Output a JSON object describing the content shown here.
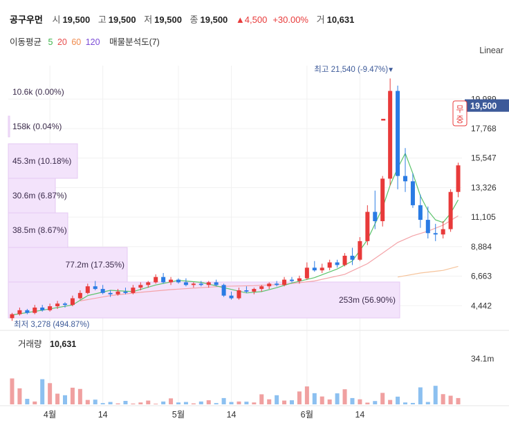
{
  "header": {
    "name": "공구우먼",
    "open_label": "시",
    "open": "19,500",
    "high_label": "고",
    "high": "19,500",
    "low_label": "저",
    "low": "19,500",
    "close_label": "종",
    "close": "19,500",
    "change": "▲4,500",
    "change_pct": "+30.00%",
    "volume_label": "거",
    "volume": "10,631"
  },
  "indicators": {
    "ma_label": "이동평균",
    "ma_periods": [
      "5",
      "20",
      "60",
      "120"
    ],
    "ma_colors": [
      "#3cb34a",
      "#e84b4b",
      "#f08a4b",
      "#7b4bd6"
    ],
    "profile_label": "매물분석도(7)"
  },
  "scale_label": "Linear",
  "colors": {
    "up": "#e83a3a",
    "down": "#2a7be4",
    "vp": "#f3e3fb",
    "vp_border": "#e6c8f3",
    "price_tag": "#3d5a99"
  },
  "chart_data": {
    "type": "candlestick",
    "y_ticks": [
      "19,989",
      "17,768",
      "15,547",
      "13,326",
      "11,105",
      "8,884",
      "6,663",
      "4,442"
    ],
    "ylim": [
      3000,
      22500
    ],
    "x_labels": [
      {
        "label": "4월",
        "index": 5
      },
      {
        "label": "14",
        "index": 12
      },
      {
        "label": "5월",
        "index": 22
      },
      {
        "label": "14",
        "index": 29
      },
      {
        "label": "6월",
        "index": 39
      },
      {
        "label": "14",
        "index": 46
      }
    ],
    "current_price": "19,500",
    "limit_up_label": "무중",
    "max_label": "최고 21,540 (-9.47%)",
    "min_label": "최저 3,278 (494.87%)",
    "volume_label": "거래량",
    "volume_value": "10,631",
    "volume_tick": "34.1m",
    "volume_profile": [
      {
        "label": "10.6k (0.00%)",
        "pct": 0.0
      },
      {
        "label": "158k (0.04%)",
        "pct": 0.04
      },
      {
        "label": "45.3m (10.18%)",
        "pct": 10.18
      },
      {
        "label": "30.6m (6.87%)",
        "pct": 6.87
      },
      {
        "label": "38.5m (8.67%)",
        "pct": 8.67
      },
      {
        "label": "77.2m (17.35%)",
        "pct": 17.35
      },
      {
        "label": "253m (56.90%)",
        "pct": 56.9
      }
    ],
    "candles": [
      [
        3500,
        3900,
        3300,
        3800
      ],
      [
        3800,
        4300,
        3700,
        4100
      ],
      [
        4100,
        4200,
        3800,
        3900
      ],
      [
        3900,
        4500,
        3800,
        4300
      ],
      [
        4300,
        4500,
        4000,
        4100
      ],
      [
        4100,
        4600,
        4000,
        4400
      ],
      [
        4400,
        4800,
        4200,
        4600
      ],
      [
        4600,
        4700,
        4300,
        4500
      ],
      [
        4500,
        5200,
        4400,
        5000
      ],
      [
        5000,
        5600,
        4900,
        5400
      ],
      [
        5400,
        6100,
        5300,
        5900
      ],
      [
        5900,
        6300,
        5600,
        5700
      ],
      [
        5700,
        6000,
        5300,
        5400
      ],
      [
        5400,
        5600,
        5100,
        5300
      ],
      [
        5300,
        5700,
        5200,
        5500
      ],
      [
        5500,
        5800,
        5300,
        5400
      ],
      [
        5400,
        6000,
        5300,
        5800
      ],
      [
        5800,
        6200,
        5600,
        6000
      ],
      [
        6000,
        6300,
        5800,
        6200
      ],
      [
        6200,
        6800,
        6100,
        6600
      ],
      [
        6600,
        6900,
        6100,
        6200
      ],
      [
        6200,
        6600,
        6000,
        6400
      ],
      [
        6400,
        6500,
        6100,
        6200
      ],
      [
        6200,
        6500,
        5900,
        6000
      ],
      [
        6000,
        6200,
        5800,
        6100
      ],
      [
        6100,
        6300,
        5900,
        6000
      ],
      [
        6000,
        6300,
        5800,
        6200
      ],
      [
        6200,
        6400,
        5900,
        6000
      ],
      [
        6000,
        6100,
        5100,
        5200
      ],
      [
        5200,
        5500,
        4900,
        5000
      ],
      [
        5000,
        5800,
        4900,
        5600
      ],
      [
        5600,
        5900,
        5400,
        5500
      ],
      [
        5500,
        5800,
        5300,
        5700
      ],
      [
        5700,
        6000,
        5500,
        5900
      ],
      [
        5900,
        6200,
        5700,
        6100
      ],
      [
        6100,
        6300,
        5900,
        6000
      ],
      [
        6000,
        6600,
        5900,
        6400
      ],
      [
        6400,
        6600,
        6200,
        6300
      ],
      [
        6300,
        6700,
        6100,
        6500
      ],
      [
        6500,
        7700,
        6400,
        7300
      ],
      [
        7300,
        7800,
        7000,
        7100
      ],
      [
        7100,
        7600,
        6900,
        7300
      ],
      [
        7300,
        7900,
        7100,
        7700
      ],
      [
        7700,
        7900,
        7300,
        7500
      ],
      [
        7500,
        8400,
        7400,
        8200
      ],
      [
        8200,
        8800,
        7500,
        7900
      ],
      [
        7900,
        9600,
        7800,
        9300
      ],
      [
        9300,
        12000,
        9000,
        11500
      ],
      [
        11500,
        13100,
        10200,
        10800
      ],
      [
        10800,
        14200,
        10400,
        14000
      ],
      [
        14000,
        21540,
        13500,
        20600
      ],
      [
        20600,
        21000,
        13200,
        14200
      ],
      [
        14200,
        16300,
        13000,
        13800
      ],
      [
        13800,
        14400,
        11800,
        12000
      ],
      [
        12000,
        12800,
        10300,
        10900
      ],
      [
        10900,
        11900,
        9500,
        9900
      ],
      [
        9900,
        10600,
        9300,
        9800
      ],
      [
        9800,
        10800,
        9500,
        10200
      ],
      [
        10200,
        13200,
        10000,
        13000
      ],
      [
        13000,
        15200,
        12600,
        15000
      ]
    ],
    "volumes": [
      16.5,
      10.2,
      3.5,
      1.8,
      16.0,
      13.5,
      6.8,
      5.8,
      10.6,
      9.8,
      2.8,
      3.0,
      0.8,
      1.5,
      0.6,
      2.2,
      0.5,
      1.2,
      2.4,
      0.4,
      1.8,
      3.8,
      1.2,
      1.5,
      0.6,
      1.8,
      2.6,
      0.8,
      4.0,
      1.5,
      1.8,
      1.7,
      1.2,
      6.4,
      3.2,
      5.8,
      2.4,
      2.6,
      8.2,
      11.4,
      7.1,
      5.0,
      3.1,
      7.0,
      9.6,
      4.0,
      3.2,
      1.1,
      2.1,
      7.3,
      2.8,
      4.9,
      1.2,
      0.9,
      10.8,
      1.5,
      11.8,
      6.5,
      5.5,
      4.0
    ],
    "ma5": [
      [
        0,
        3750
      ],
      [
        4,
        4100
      ],
      [
        8,
        4500
      ],
      [
        10,
        5200
      ],
      [
        13,
        5600
      ],
      [
        16,
        5500
      ],
      [
        19,
        6000
      ],
      [
        22,
        6350
      ],
      [
        25,
        6200
      ],
      [
        28,
        5800
      ],
      [
        31,
        5400
      ],
      [
        33,
        5500
      ],
      [
        35,
        5800
      ],
      [
        37,
        6150
      ],
      [
        40,
        6550
      ],
      [
        43,
        7200
      ],
      [
        45,
        7800
      ],
      [
        47,
        9400
      ],
      [
        49,
        11800
      ],
      [
        50,
        13500
      ],
      [
        51,
        14800
      ],
      [
        52,
        15900
      ],
      [
        53,
        14400
      ],
      [
        54,
        12700
      ],
      [
        55,
        11600
      ],
      [
        56,
        10900
      ],
      [
        57,
        10700
      ],
      [
        58,
        11400
      ],
      [
        59,
        12400
      ]
    ],
    "ma20": [
      [
        9,
        4800
      ],
      [
        13,
        5200
      ],
      [
        17,
        5450
      ],
      [
        21,
        5650
      ],
      [
        25,
        5800
      ],
      [
        28,
        5900
      ],
      [
        32,
        5950
      ],
      [
        36,
        6050
      ],
      [
        40,
        6300
      ],
      [
        44,
        6800
      ],
      [
        47,
        7600
      ],
      [
        49,
        8400
      ],
      [
        51,
        9200
      ],
      [
        53,
        9700
      ],
      [
        55,
        10050
      ],
      [
        57,
        10500
      ],
      [
        59,
        11200
      ]
    ],
    "ma60": [
      [
        51,
        6600
      ],
      [
        54,
        6900
      ],
      [
        57,
        7100
      ],
      [
        59,
        7400
      ]
    ]
  }
}
